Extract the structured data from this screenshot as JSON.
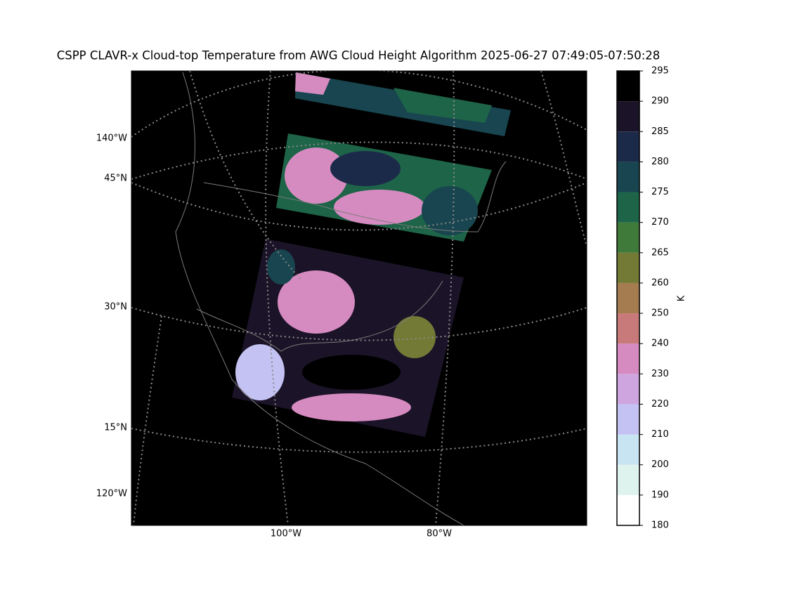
{
  "title": "CSPP CLAVR-x Cloud-top Temperature from AWG Cloud Height Algorithm 2025-06-27 07:49:05-07:50:28",
  "map": {
    "labels": [
      "140°W",
      "45°N",
      "30°N",
      "15°N",
      "120°W",
      "100°W",
      "80°W"
    ]
  },
  "colorbar": {
    "label": "K",
    "ticks": [
      180,
      190,
      200,
      210,
      220,
      230,
      240,
      250,
      260,
      265,
      270,
      275,
      280,
      285,
      290,
      295
    ],
    "colors": [
      "#ffffff",
      "#dff3ee",
      "#c8e3f2",
      "#c4c2f2",
      "#cfa5e0",
      "#d68bc0",
      "#c87a7a",
      "#a57c50",
      "#737a35",
      "#3f7a3a",
      "#1d6448",
      "#18454f",
      "#1c2a4a",
      "#1b1428",
      "#000000"
    ]
  }
}
